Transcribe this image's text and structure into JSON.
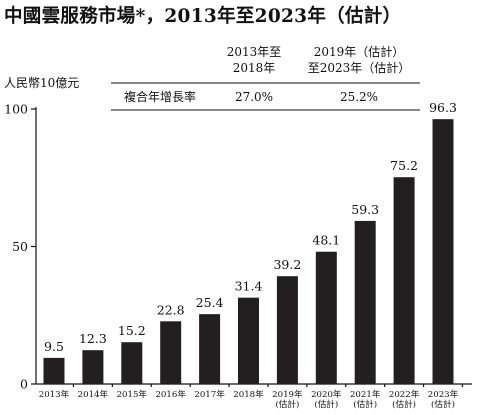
{
  "chart_data": {
    "type": "bar",
    "title": "中國雲服務市場*，2013年至2023年（估計）",
    "ylabel": "人民幣10億元",
    "ylim": [
      0,
      100
    ],
    "yticks": [
      "0",
      "50",
      "100"
    ],
    "categories": [
      [
        "2013年"
      ],
      [
        "2014年"
      ],
      [
        "2015年"
      ],
      [
        "2016年"
      ],
      [
        "2017年"
      ],
      [
        "2018年"
      ],
      [
        "2019年",
        "(估計)"
      ],
      [
        "2020年",
        "(估計)"
      ],
      [
        "2021年",
        "(估計)"
      ],
      [
        "2022年",
        "(估計)"
      ],
      [
        "2023年",
        "(估計)"
      ]
    ],
    "values": [
      9.5,
      12.3,
      15.2,
      22.8,
      25.4,
      31.4,
      39.2,
      48.1,
      59.3,
      75.2,
      96.3
    ],
    "value_labels": [
      "9.5",
      "12.3",
      "15.2",
      "22.8",
      "25.4",
      "31.4",
      "39.2",
      "48.1",
      "59.3",
      "75.2",
      "96.3"
    ],
    "cagr_table": {
      "headers": [
        [
          "2013年至",
          "2018年"
        ],
        [
          "2019年（估計）",
          "至2023年（估計）"
        ]
      ],
      "row_label": "複合年增長率",
      "values": [
        "27.0%",
        "25.2%"
      ]
    },
    "grid": false,
    "legend": "none"
  }
}
